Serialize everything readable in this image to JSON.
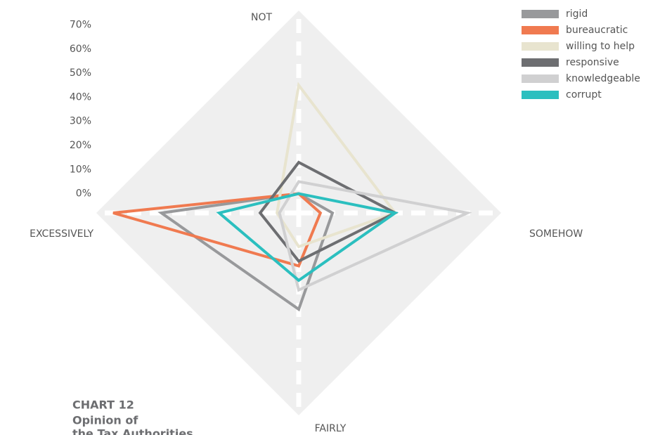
{
  "chart_data": {
    "type": "radar",
    "title": "CHART 12",
    "subtitle_lines": [
      "Opinion of",
      "the Tax Authorities"
    ],
    "axes": [
      "NOT",
      "SOMEHOW",
      "FAIRLY",
      "EXCESSIVELY"
    ],
    "rlim": [
      -8,
      76
    ],
    "rticks": [
      {
        "value": 0,
        "label": "0%"
      },
      {
        "value": 10,
        "label": "10%"
      },
      {
        "value": 20,
        "label": "20%"
      },
      {
        "value": 30,
        "label": "30%"
      },
      {
        "value": 40,
        "label": "40%"
      },
      {
        "value": 50,
        "label": "50%"
      },
      {
        "value": 60,
        "label": "60%"
      },
      {
        "value": 70,
        "label": "70%"
      }
    ],
    "series": [
      {
        "name": "rigid",
        "color": "#98999b",
        "values": [
          0,
          6,
          32,
          49
        ]
      },
      {
        "name": "bureaucratic",
        "color": "#f07a50",
        "values": [
          0,
          1,
          14,
          69
        ]
      },
      {
        "name": "willing to help",
        "color": "#e8e4cf",
        "values": [
          45,
          32,
          6,
          1
        ]
      },
      {
        "name": "responsive",
        "color": "#6d6e71",
        "values": [
          13,
          32,
          12,
          8
        ]
      },
      {
        "name": "knowledgeable",
        "color": "#d0d0d1",
        "values": [
          5,
          62,
          24,
          0
        ]
      },
      {
        "name": "corrupt",
        "color": "#2bbfbf",
        "values": [
          0,
          32,
          20,
          25
        ]
      }
    ]
  }
}
